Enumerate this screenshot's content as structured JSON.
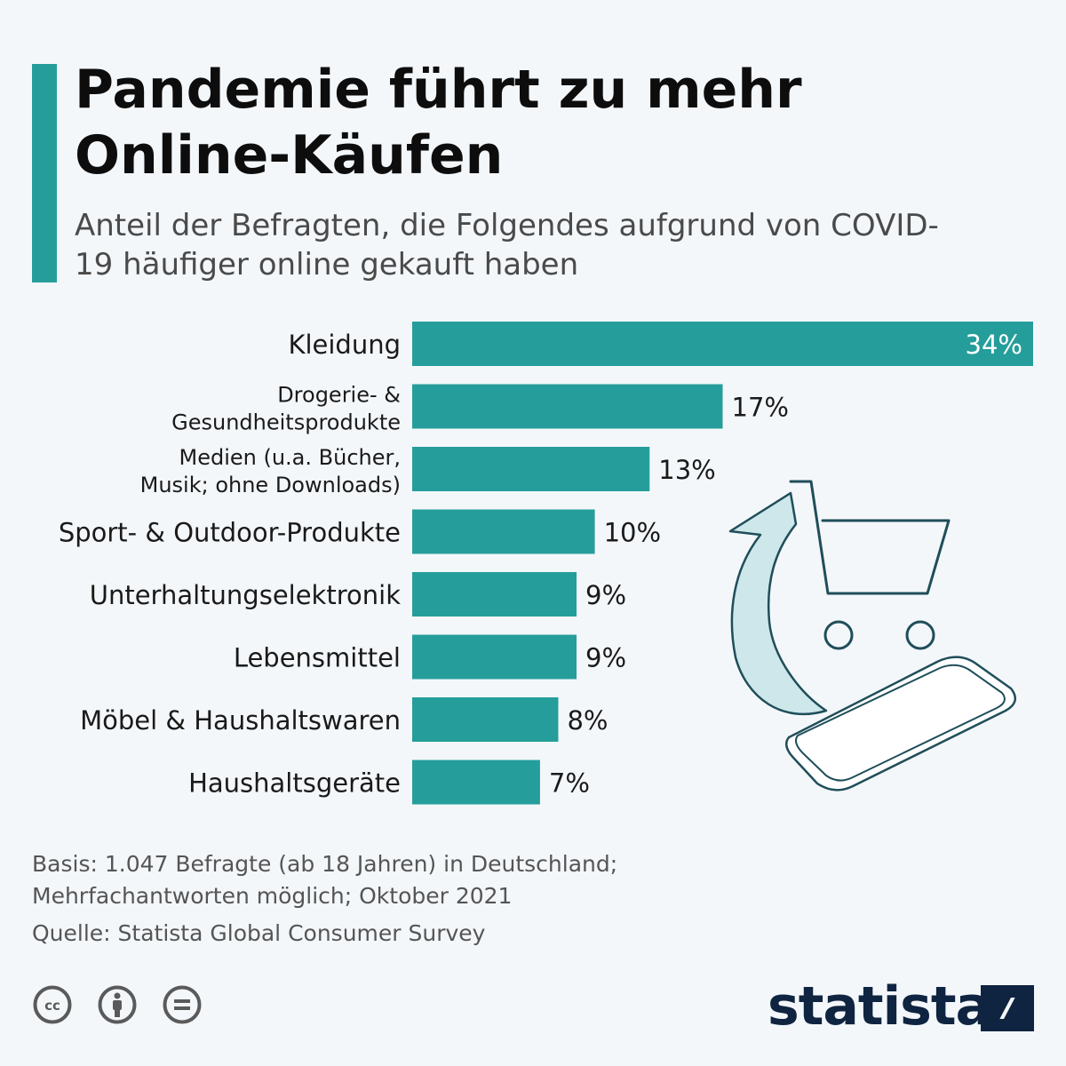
{
  "header": {
    "title": "Pandemie führt zu mehr Online-Käufen",
    "subtitle": "Anteil der Befragten, die Folgendes aufgrund von COVID-19 häufiger online gekauft haben"
  },
  "chart_data": {
    "type": "bar",
    "orientation": "horizontal",
    "categories": [
      [
        "Kleidung"
      ],
      [
        "Drogerie- &",
        "Gesundheitsprodukte"
      ],
      [
        "Medien (u.a. Bücher,",
        "Musik; ohne Downloads)"
      ],
      [
        "Sport- & Outdoor-Produkte"
      ],
      [
        "Unterhaltungselektronik"
      ],
      [
        "Lebensmittel"
      ],
      [
        "Möbel & Haushaltswaren"
      ],
      [
        "Haushaltsgeräte"
      ]
    ],
    "values": [
      34,
      17,
      13,
      10,
      9,
      9,
      8,
      7
    ],
    "value_labels": [
      "34%",
      "17%",
      "13%",
      "10%",
      "9%",
      "9%",
      "8%",
      "7%"
    ],
    "unit": "%",
    "xlim": [
      0,
      34
    ],
    "grid": false,
    "bar_color": "#259e9b"
  },
  "footer": {
    "note_line1": "Basis: 1.047 Befragte (ab 18 Jahren) in Deutschland;",
    "note_line2": "Mehrfachantworten möglich; Oktober 2021",
    "source": "Quelle: Statista Global Consumer Survey",
    "brand": "statista"
  },
  "icons": [
    "cc-icon",
    "attribution-icon",
    "no-derivatives-icon",
    "shopping-cart-icon",
    "arrow-icon",
    "smartphone-icon",
    "statista-logo-icon"
  ],
  "colors": {
    "accent": "#259e9b",
    "text": "#0d0d0d",
    "muted": "#555555",
    "brand": "#0f2440",
    "illustration": "#1f4e5a",
    "illustration_fill": "#cde7ea"
  }
}
